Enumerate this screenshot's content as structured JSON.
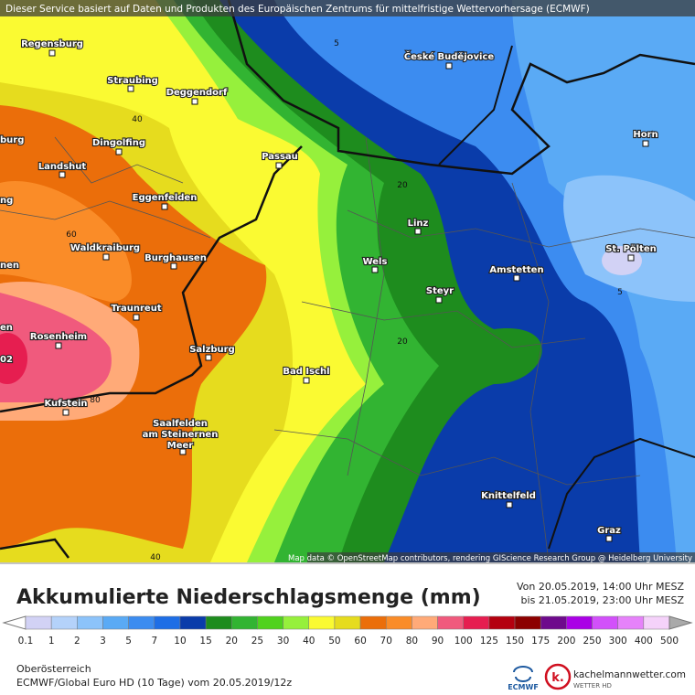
{
  "header": {
    "notice": "Dieser Service basiert auf Daten und Produkten des Europäischen Zentrums für mittelfristige Wettervorhersage (ECMWF)"
  },
  "map": {
    "cities": [
      [
        "Regensburg"
      ],
      [
        "Straubing"
      ],
      [
        "Deggendorf"
      ],
      [
        "Dingolfing"
      ],
      [
        "Landshut"
      ],
      [
        "Passau"
      ],
      [
        "Eggenfelden"
      ],
      [
        "Linz"
      ],
      [
        "Waldkraiburg"
      ],
      [
        "Burghausen"
      ],
      [
        "Wels"
      ],
      [
        "Amstetten"
      ],
      [
        "St. Pölten"
      ],
      [
        "Steyr"
      ],
      [
        "Traunreut"
      ],
      [
        "Rosenheim"
      ],
      [
        "Salzburg"
      ],
      [
        "Bad Ischl"
      ],
      [
        "Kufstein"
      ],
      [
        "Saalfelden",
        "am Steinernen",
        "Meer"
      ],
      [
        "Horn"
      ],
      [
        "České Budějovice"
      ],
      [
        "Knittelfeld"
      ],
      [
        "Graz"
      ]
    ],
    "partial_labels": [
      "burg",
      "ng",
      "nen",
      "en",
      "02"
    ],
    "contour_labels": [
      5,
      40,
      60,
      20,
      20,
      5,
      80,
      40
    ],
    "credit": "Map data © OpenStreetMap contributors, rendering GIScience Research Group @ Heidelberg University"
  },
  "legend": {
    "title": "Akkumulierte Niederschlagsmenge (mm)",
    "period_from": "Von 20.05.2019, 14:00 Uhr MESZ",
    "period_to": "bis 21.05.2019, 23:00 Uhr MESZ",
    "ticks": [
      0.1,
      1,
      2,
      3,
      5,
      7,
      10,
      15,
      20,
      25,
      30,
      40,
      50,
      60,
      70,
      80,
      90,
      100,
      125,
      150,
      175,
      200,
      250,
      300,
      400,
      500
    ],
    "colors": [
      "#d2d2f5",
      "#b4d2fa",
      "#8cc3fa",
      "#5aaaf5",
      "#3c8cf0",
      "#1e6ee6",
      "#0a3caa",
      "#1e8c1e",
      "#32b432",
      "#50d21e",
      "#96f03c",
      "#fafa32",
      "#e6dc1e",
      "#eb6e0a",
      "#fa8c28",
      "#ffaa78",
      "#f05a7d",
      "#e61e50",
      "#b4000f",
      "#8c0000",
      "#6e0a8c",
      "#aa00e6",
      "#d250fa",
      "#e682fa",
      "#f5d2fa"
    ]
  },
  "footer": {
    "region": "Oberösterreich",
    "model": "ECMWF/Global Euro HD (10 Tage) vom 20.05.2019/12z",
    "ecmwf_logo": "ECMWF",
    "logo_mark": "k.",
    "brand": "kachelmannwetter.com",
    "brand_sub": "WETTER HD"
  }
}
